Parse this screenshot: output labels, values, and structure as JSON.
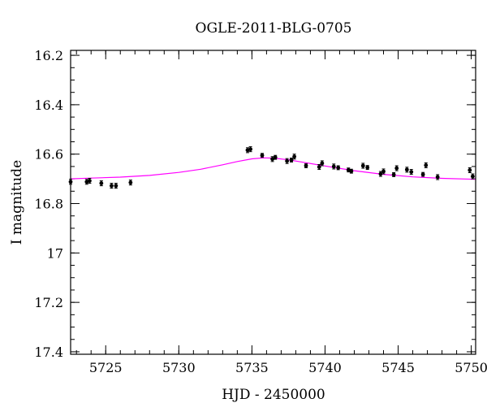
{
  "chart_data": {
    "type": "scatter",
    "title": "OGLE-2011-BLG-0705",
    "xlabel": "HJD - 2450000",
    "ylabel": "I magnitude",
    "xlim": [
      5722.6,
      5750.3
    ],
    "ylim": [
      17.41,
      16.18
    ],
    "y_inverted": true,
    "xticks": [
      5725,
      5730,
      5735,
      5740,
      5745,
      5750
    ],
    "xtick_labels": [
      "5725",
      "5730",
      "5735",
      "5740",
      "5745",
      "5750"
    ],
    "yticks": [
      16.2,
      16.4,
      16.6,
      16.8,
      17.0,
      17.2,
      17.4
    ],
    "ytick_labels": [
      "16.2",
      "16.4",
      "16.6",
      "16.8",
      "17",
      "17.2",
      "17.4"
    ],
    "x_minor_step": 1,
    "y_minor_step": 0.05,
    "grid": false,
    "series": [
      {
        "type": "points-with-errorbars",
        "color": "#000000",
        "points": [
          {
            "x": 5722.6,
            "y": 16.712,
            "err": 0.01
          },
          {
            "x": 5723.7,
            "y": 16.712,
            "err": 0.01
          },
          {
            "x": 5723.9,
            "y": 16.708,
            "err": 0.01
          },
          {
            "x": 5724.7,
            "y": 16.718,
            "err": 0.01
          },
          {
            "x": 5725.4,
            "y": 16.728,
            "err": 0.01
          },
          {
            "x": 5725.7,
            "y": 16.728,
            "err": 0.01
          },
          {
            "x": 5726.7,
            "y": 16.715,
            "err": 0.01
          },
          {
            "x": 5734.7,
            "y": 16.584,
            "err": 0.01
          },
          {
            "x": 5734.9,
            "y": 16.58,
            "err": 0.01
          },
          {
            "x": 5735.7,
            "y": 16.605,
            "err": 0.008
          },
          {
            "x": 5736.4,
            "y": 16.62,
            "err": 0.01
          },
          {
            "x": 5736.6,
            "y": 16.613,
            "err": 0.008
          },
          {
            "x": 5737.4,
            "y": 16.628,
            "err": 0.01
          },
          {
            "x": 5737.7,
            "y": 16.624,
            "err": 0.008
          },
          {
            "x": 5737.9,
            "y": 16.61,
            "err": 0.01
          },
          {
            "x": 5738.7,
            "y": 16.647,
            "err": 0.008
          },
          {
            "x": 5739.6,
            "y": 16.652,
            "err": 0.01
          },
          {
            "x": 5739.8,
            "y": 16.637,
            "err": 0.01
          },
          {
            "x": 5740.6,
            "y": 16.65,
            "err": 0.01
          },
          {
            "x": 5740.9,
            "y": 16.655,
            "err": 0.008
          },
          {
            "x": 5741.6,
            "y": 16.664,
            "err": 0.008
          },
          {
            "x": 5741.8,
            "y": 16.669,
            "err": 0.008
          },
          {
            "x": 5742.6,
            "y": 16.647,
            "err": 0.01
          },
          {
            "x": 5742.9,
            "y": 16.654,
            "err": 0.008
          },
          {
            "x": 5743.8,
            "y": 16.68,
            "err": 0.01
          },
          {
            "x": 5744.0,
            "y": 16.67,
            "err": 0.01
          },
          {
            "x": 5744.7,
            "y": 16.683,
            "err": 0.008
          },
          {
            "x": 5744.9,
            "y": 16.657,
            "err": 0.01
          },
          {
            "x": 5745.6,
            "y": 16.663,
            "err": 0.01
          },
          {
            "x": 5745.9,
            "y": 16.672,
            "err": 0.01
          },
          {
            "x": 5746.7,
            "y": 16.682,
            "err": 0.008
          },
          {
            "x": 5746.9,
            "y": 16.645,
            "err": 0.01
          },
          {
            "x": 5747.7,
            "y": 16.693,
            "err": 0.01
          },
          {
            "x": 5749.9,
            "y": 16.665,
            "err": 0.01
          },
          {
            "x": 5750.1,
            "y": 16.69,
            "err": 0.01
          }
        ]
      },
      {
        "type": "model-line",
        "color": "#ff00ff",
        "points": [
          {
            "x": 5722.6,
            "y": 16.7
          },
          {
            "x": 5724.0,
            "y": 16.697
          },
          {
            "x": 5726.0,
            "y": 16.693
          },
          {
            "x": 5728.0,
            "y": 16.686
          },
          {
            "x": 5730.0,
            "y": 16.674
          },
          {
            "x": 5731.5,
            "y": 16.661
          },
          {
            "x": 5733.0,
            "y": 16.643
          },
          {
            "x": 5734.0,
            "y": 16.63
          },
          {
            "x": 5735.0,
            "y": 16.619
          },
          {
            "x": 5735.8,
            "y": 16.615
          },
          {
            "x": 5736.5,
            "y": 16.616
          },
          {
            "x": 5737.5,
            "y": 16.623
          },
          {
            "x": 5738.5,
            "y": 16.633
          },
          {
            "x": 5740.0,
            "y": 16.648
          },
          {
            "x": 5742.0,
            "y": 16.667
          },
          {
            "x": 5744.0,
            "y": 16.682
          },
          {
            "x": 5746.0,
            "y": 16.692
          },
          {
            "x": 5748.0,
            "y": 16.698
          },
          {
            "x": 5750.3,
            "y": 16.702
          }
        ]
      }
    ]
  }
}
